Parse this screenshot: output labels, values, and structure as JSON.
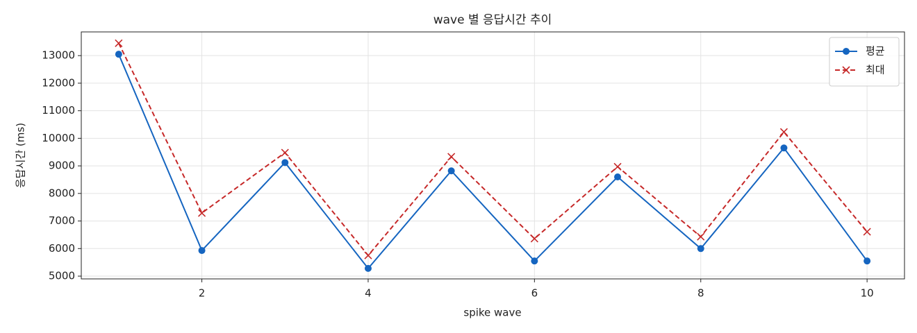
{
  "chart_data": {
    "type": "line",
    "title": "wave 별 응답시간 추이",
    "x_label": "spike wave",
    "y_label": "응답시간 (ms)",
    "x": [
      1,
      2,
      3,
      4,
      5,
      6,
      7,
      8,
      9,
      10
    ],
    "series": [
      {
        "name": "평균",
        "color": "#1565c0",
        "marker": "circle",
        "linestyle": "solid",
        "values": [
          13050,
          5930,
          9120,
          5280,
          8820,
          5550,
          8600,
          6000,
          9650,
          5550
        ]
      },
      {
        "name": "최대",
        "color": "#c62828",
        "marker": "x",
        "linestyle": "dashed",
        "values": [
          13450,
          7290,
          9480,
          5750,
          9330,
          6360,
          8970,
          6430,
          10230,
          6610
        ]
      }
    ],
    "xlim": [
      0.55,
      10.45
    ],
    "xticks": [
      2,
      4,
      6,
      8,
      10
    ],
    "ylim": [
      4900,
      13860
    ],
    "yticks": [
      5000,
      6000,
      7000,
      8000,
      9000,
      10000,
      11000,
      12000,
      13000
    ],
    "grid": true,
    "legend": "upper right"
  }
}
